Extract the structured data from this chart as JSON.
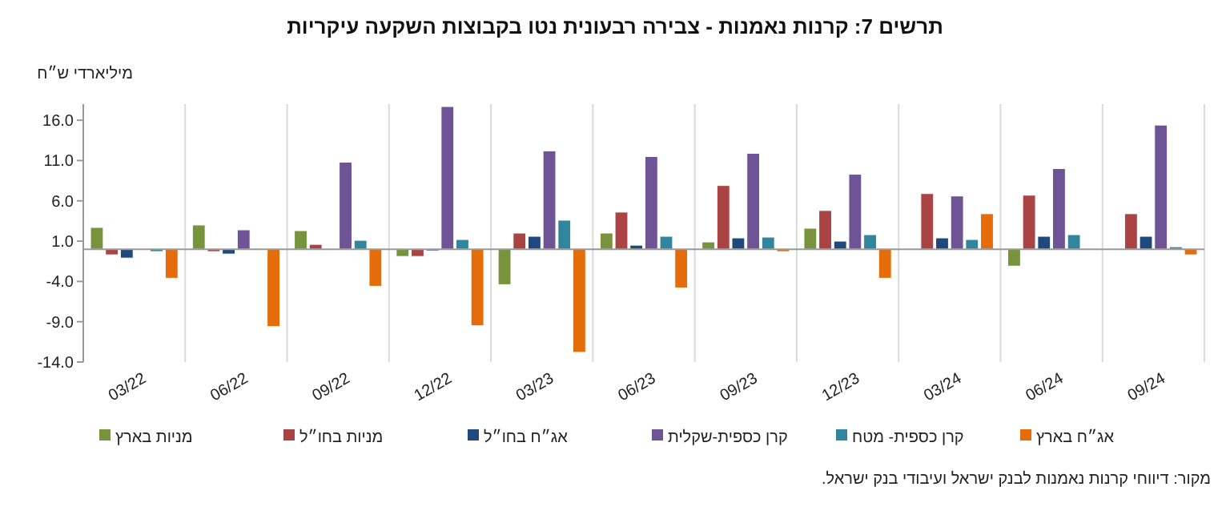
{
  "chart_data": {
    "type": "bar",
    "title": "תרשים 7: קרנות נאמנות - צבירה רבעונית נטו בקבוצות השקעה עיקריות",
    "ylabel": "מיליארדי ש״ח",
    "categories": [
      "03/22",
      "06/22",
      "09/22",
      "12/22",
      "03/23",
      "06/23",
      "09/23",
      "12/23",
      "03/24",
      "06/24",
      "09/24"
    ],
    "series": [
      {
        "name": "מניות בארץ",
        "color": "#77933c",
        "values": [
          2.7,
          3.0,
          2.3,
          -0.9,
          -4.4,
          2.0,
          0.9,
          2.6,
          0,
          -2.1,
          0
        ]
      },
      {
        "name": "מניות בחו״ל",
        "color": "#aa4344",
        "values": [
          -0.7,
          -0.3,
          0.6,
          -0.9,
          2.0,
          4.6,
          7.9,
          4.8,
          6.9,
          6.7,
          4.4
        ]
      },
      {
        "name": "אג״ח בחו״ל",
        "color": "#1f497d",
        "values": [
          -1.1,
          -0.6,
          0,
          -0.2,
          1.6,
          0.5,
          1.4,
          1.0,
          1.4,
          1.6,
          1.6
        ]
      },
      {
        "name": "קרן כספית-שקלית",
        "color": "#6f5495",
        "values": [
          0,
          2.4,
          10.8,
          17.7,
          12.2,
          11.5,
          11.9,
          9.3,
          6.6,
          10.0,
          15.4
        ]
      },
      {
        "name": "קרן כספית- מטח",
        "color": "#31859c",
        "values": [
          -0.3,
          0,
          1.1,
          1.2,
          3.6,
          1.6,
          1.5,
          1.8,
          1.2,
          1.8,
          0.3
        ]
      },
      {
        "name": "אג״ח בארץ",
        "color": "#e46c0a",
        "values": [
          -3.6,
          -9.6,
          -4.6,
          -9.5,
          -12.8,
          -4.8,
          -0.3,
          -3.6,
          4.4,
          0,
          -0.7
        ]
      }
    ],
    "ylim": [
      -14,
      18
    ],
    "yticks": [
      {
        "value": -14,
        "label": "-14.0"
      },
      {
        "value": -9,
        "label": "-9.0"
      },
      {
        "value": -4,
        "label": "-4.0"
      },
      {
        "value": 1,
        "label": "1.0"
      },
      {
        "value": 6,
        "label": "6.0"
      },
      {
        "value": 11,
        "label": "11.0"
      },
      {
        "value": 16,
        "label": "16.0"
      }
    ],
    "grid": "x",
    "legend": "bottom",
    "annotations": [
      "מקור: דיווחי קרנות נאמנות לבנק ישראל ועיבודי בנק ישראל."
    ]
  }
}
